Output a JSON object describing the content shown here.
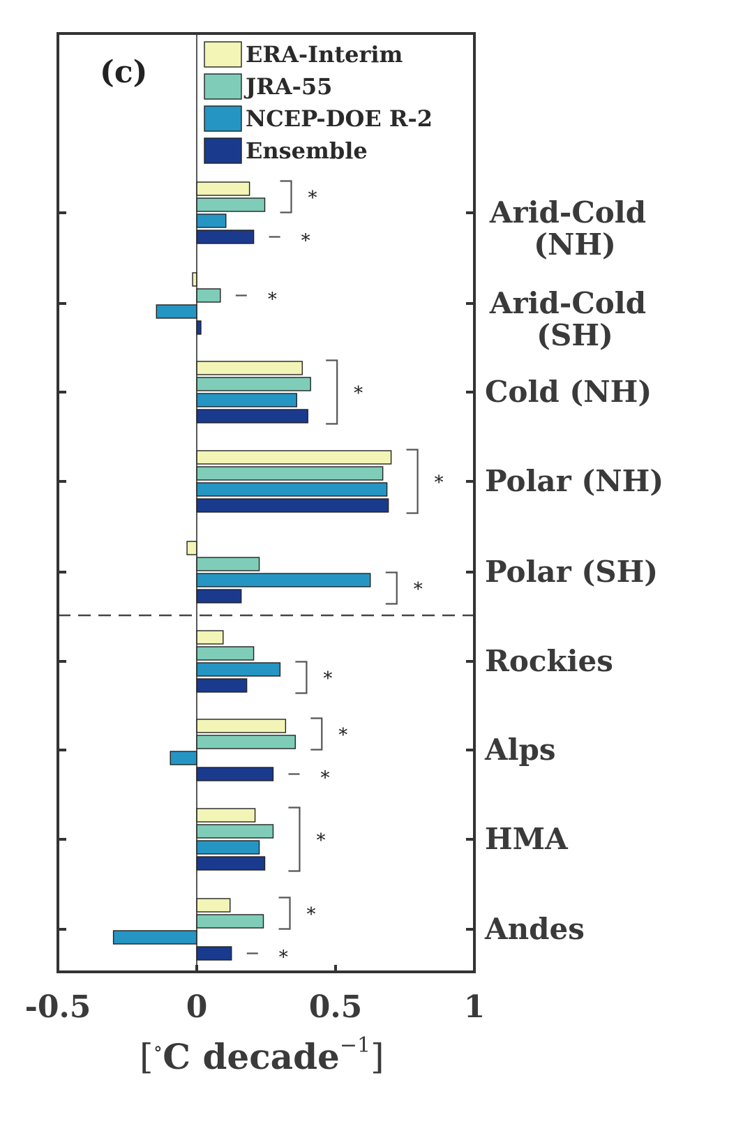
{
  "chart_data": {
    "type": "bar",
    "orientation": "horizontal",
    "panel_label": "(c)",
    "xlabel_parts": {
      "open": "[",
      "degree": "∘",
      "unit": "C decade",
      "exponent": "−1",
      "close": "]"
    },
    "xlim": [
      -0.5,
      1
    ],
    "xticks": [
      {
        "value": -0.5,
        "label": "-0.5"
      },
      {
        "value": 0,
        "label": "0"
      },
      {
        "value": 0.5,
        "label": "0.5"
      },
      {
        "value": 1,
        "label": "1"
      }
    ],
    "grid": false,
    "legend_position": "top",
    "separator_after_category": "Polar (SH)",
    "categories": [
      {
        "lines": [
          "Arid-Cold",
          "(NH)"
        ]
      },
      {
        "lines": [
          "Arid-Cold",
          "(SH)"
        ]
      },
      {
        "lines": [
          "Cold (NH)"
        ]
      },
      {
        "lines": [
          "Polar (NH)"
        ]
      },
      {
        "lines": [
          "Polar (SH)"
        ]
      },
      {
        "lines": [
          "Rockies"
        ]
      },
      {
        "lines": [
          "Alps"
        ]
      },
      {
        "lines": [
          "HMA"
        ]
      },
      {
        "lines": [
          "Andes"
        ]
      }
    ],
    "series": [
      {
        "name": "ERA-Interim",
        "color": "#f2f5b6",
        "values": [
          0.19,
          -0.015,
          0.38,
          0.7,
          -0.035,
          0.095,
          0.32,
          0.21,
          0.12
        ]
      },
      {
        "name": "JRA-55",
        "color": "#7fcdb8",
        "values": [
          0.245,
          0.085,
          0.41,
          0.67,
          0.225,
          0.205,
          0.355,
          0.275,
          0.24
        ]
      },
      {
        "name": "NCEP-DOE R-2",
        "color": "#2596c4",
        "values": [
          0.105,
          -0.145,
          0.36,
          0.685,
          0.625,
          0.3,
          -0.095,
          0.225,
          -0.3
        ]
      },
      {
        "name": "Ensemble",
        "color": "#1a3a8e",
        "values": [
          0.205,
          0.015,
          0.4,
          0.69,
          0.16,
          0.18,
          0.275,
          0.245,
          0.125
        ]
      }
    ],
    "significance": [
      {
        "category": 0,
        "series_span": [
          0,
          1
        ],
        "mark": "*"
      },
      {
        "category": 0,
        "series_span": [
          3,
          3
        ],
        "mark": "*"
      },
      {
        "category": 1,
        "series_span": [
          1,
          1
        ],
        "mark": "*"
      },
      {
        "category": 2,
        "series_span": [
          0,
          3
        ],
        "mark": "*"
      },
      {
        "category": 3,
        "series_span": [
          0,
          3
        ],
        "mark": "*"
      },
      {
        "category": 4,
        "series_span": [
          2,
          3
        ],
        "mark": "*"
      },
      {
        "category": 5,
        "series_span": [
          2,
          3
        ],
        "mark": "*"
      },
      {
        "category": 6,
        "series_span": [
          0,
          1
        ],
        "mark": "*"
      },
      {
        "category": 6,
        "series_span": [
          3,
          3
        ],
        "mark": "*"
      },
      {
        "category": 7,
        "series_span": [
          0,
          3
        ],
        "mark": "*"
      },
      {
        "category": 8,
        "series_span": [
          0,
          1
        ],
        "mark": "*"
      },
      {
        "category": 8,
        "series_span": [
          3,
          3
        ],
        "mark": "*"
      }
    ]
  }
}
